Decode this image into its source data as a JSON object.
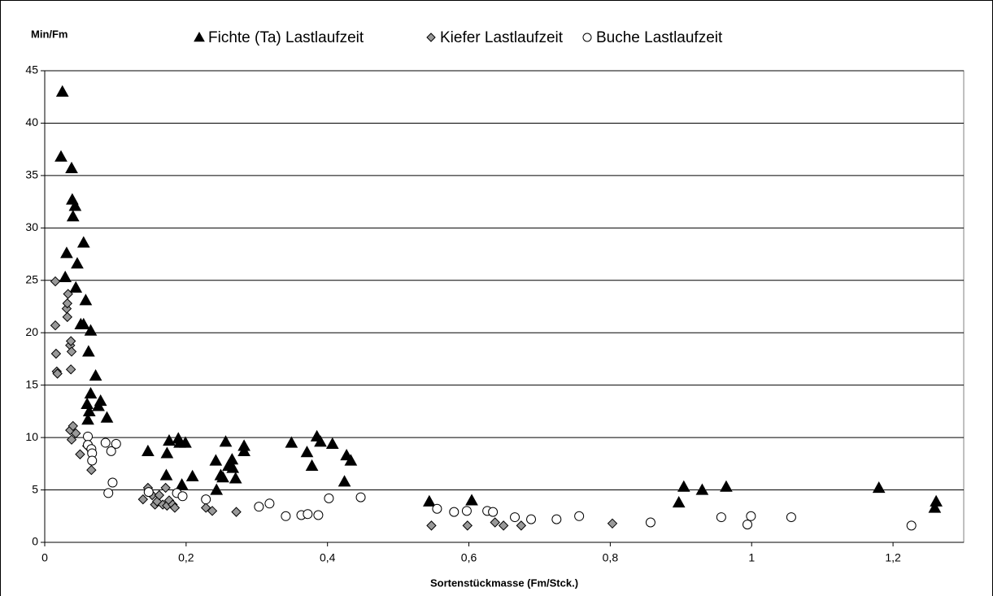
{
  "chart_data": {
    "type": "scatter",
    "y_label": "Min/Fm",
    "x_label": "Sortenstückmasse (Fm/Stck.)",
    "xlim": [
      0,
      1.3
    ],
    "ylim": [
      0,
      45
    ],
    "xticks": [
      0,
      {
        "value": 0.2,
        "label": "0,2"
      },
      {
        "value": 0.4,
        "label": "0,4"
      },
      {
        "value": 0.6,
        "label": "0,6"
      },
      {
        "value": 0.8,
        "label": "0,8"
      },
      1,
      {
        "value": 1.2,
        "label": "1,2"
      }
    ],
    "yticks": [
      0,
      5,
      10,
      15,
      20,
      25,
      30,
      35,
      40,
      45
    ],
    "grid": true,
    "legend": "top",
    "series": [
      {
        "name": "Fichte (Ta) Lastlaufzeit",
        "marker": "triangle",
        "color": "#000000",
        "x": [
          0.025,
          0.023,
          0.038,
          0.039,
          0.043,
          0.04,
          0.055,
          0.031,
          0.046,
          0.029,
          0.044,
          0.058,
          0.051,
          0.055,
          0.065,
          0.062,
          0.072,
          0.065,
          0.079,
          0.06,
          0.076,
          0.063,
          0.061,
          0.088,
          0.146,
          0.176,
          0.189,
          0.191,
          0.199,
          0.173,
          0.172,
          0.209,
          0.194,
          0.242,
          0.243,
          0.249,
          0.252,
          0.256,
          0.26,
          0.265,
          0.266,
          0.27,
          0.282,
          0.282,
          0.349,
          0.371,
          0.378,
          0.385,
          0.39,
          0.407,
          0.427,
          0.433,
          0.424,
          0.544,
          0.604,
          0.904,
          0.897,
          0.93,
          0.964,
          1.18,
          1.261,
          1.259
        ],
        "y": [
          43.0,
          36.8,
          35.7,
          32.7,
          32.1,
          31.1,
          28.6,
          27.6,
          26.6,
          25.3,
          24.3,
          23.1,
          20.8,
          20.8,
          20.2,
          18.2,
          15.9,
          14.2,
          13.5,
          13.2,
          13.0,
          12.5,
          11.7,
          11.9,
          8.7,
          9.7,
          9.9,
          9.5,
          9.5,
          8.5,
          6.4,
          6.3,
          5.5,
          7.8,
          5.0,
          6.4,
          6.2,
          9.6,
          7.3,
          7.9,
          7.1,
          6.1,
          9.2,
          8.7,
          9.5,
          8.6,
          7.3,
          10.1,
          9.6,
          9.4,
          8.3,
          7.8,
          5.8,
          3.9,
          4.0,
          5.3,
          3.8,
          5.0,
          5.3,
          5.2,
          3.9,
          3.3
        ]
      },
      {
        "name": "Kiefer Lastlaufzeit",
        "marker": "diamond",
        "color": "#999999",
        "x": [
          0.015,
          0.015,
          0.016,
          0.017,
          0.018,
          0.031,
          0.032,
          0.033,
          0.032,
          0.036,
          0.037,
          0.038,
          0.037,
          0.036,
          0.04,
          0.044,
          0.038,
          0.05,
          0.06,
          0.066,
          0.139,
          0.146,
          0.152,
          0.156,
          0.159,
          0.162,
          0.167,
          0.171,
          0.173,
          0.176,
          0.181,
          0.184,
          0.228,
          0.237,
          0.271,
          0.547,
          0.598,
          0.637,
          0.649,
          0.674,
          0.803
        ],
        "y": [
          24.9,
          20.7,
          18.0,
          16.3,
          16.1,
          22.3,
          22.8,
          23.7,
          21.5,
          18.8,
          19.2,
          18.2,
          16.5,
          10.7,
          11.1,
          10.4,
          9.8,
          8.4,
          9.2,
          6.9,
          4.1,
          5.2,
          4.5,
          3.6,
          3.9,
          4.5,
          3.6,
          5.2,
          3.5,
          4.0,
          3.6,
          3.3,
          3.3,
          3.0,
          2.9,
          1.6,
          1.6,
          1.9,
          1.6,
          1.6,
          1.8
        ]
      },
      {
        "name": "Buche Lastlaufzeit",
        "marker": "circle",
        "color": "#ffffff",
        "x": [
          0.061,
          0.061,
          0.066,
          0.067,
          0.067,
          0.086,
          0.094,
          0.101,
          0.096,
          0.09,
          0.147,
          0.187,
          0.195,
          0.228,
          0.303,
          0.318,
          0.341,
          0.363,
          0.372,
          0.387,
          0.402,
          0.447,
          0.555,
          0.579,
          0.597,
          0.626,
          0.634,
          0.665,
          0.688,
          0.724,
          0.756,
          0.857,
          0.957,
          0.994,
          0.999,
          1.056,
          1.226
        ],
        "y": [
          10.1,
          9.3,
          8.9,
          8.5,
          7.8,
          9.5,
          8.7,
          9.4,
          5.7,
          4.7,
          4.8,
          4.7,
          4.4,
          4.1,
          3.4,
          3.7,
          2.5,
          2.6,
          2.7,
          2.6,
          4.2,
          4.3,
          3.2,
          2.9,
          3.0,
          3.0,
          2.9,
          2.4,
          2.2,
          2.2,
          2.5,
          1.9,
          2.4,
          1.7,
          2.5,
          2.4,
          1.6
        ]
      }
    ]
  }
}
